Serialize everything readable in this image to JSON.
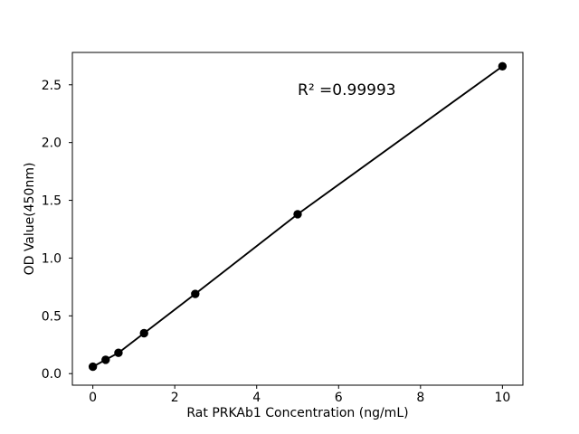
{
  "chart_data": {
    "type": "line",
    "title": "",
    "xlabel": "Rat PRKAb1 Concentration (ng/mL)",
    "ylabel": "OD Value(450nm)",
    "x": [
      0,
      0.3125,
      0.625,
      1.25,
      2.5,
      5,
      10
    ],
    "y": [
      0.06,
      0.12,
      0.18,
      0.35,
      0.69,
      1.38,
      2.66
    ],
    "annotation": {
      "text": "R² =0.99993",
      "x": 6.2,
      "y": 2.45
    },
    "xticks": [
      0,
      2,
      4,
      6,
      8,
      10
    ],
    "xtick_labels": [
      "0",
      "2",
      "4",
      "6",
      "8",
      "10"
    ],
    "yticks": [
      0.0,
      0.5,
      1.0,
      1.5,
      2.0,
      2.5
    ],
    "ytick_labels": [
      "0.0",
      "0.5",
      "1.0",
      "1.5",
      "2.0",
      "2.5"
    ],
    "xlim": [
      -0.5,
      10.5
    ],
    "ylim": [
      -0.1,
      2.78
    ],
    "grid": false,
    "legend": null,
    "line_color": "#000000",
    "marker": "circle",
    "marker_color": "#000000",
    "axis_color": "#000000",
    "text_color": "#000000",
    "background": "#ffffff"
  }
}
